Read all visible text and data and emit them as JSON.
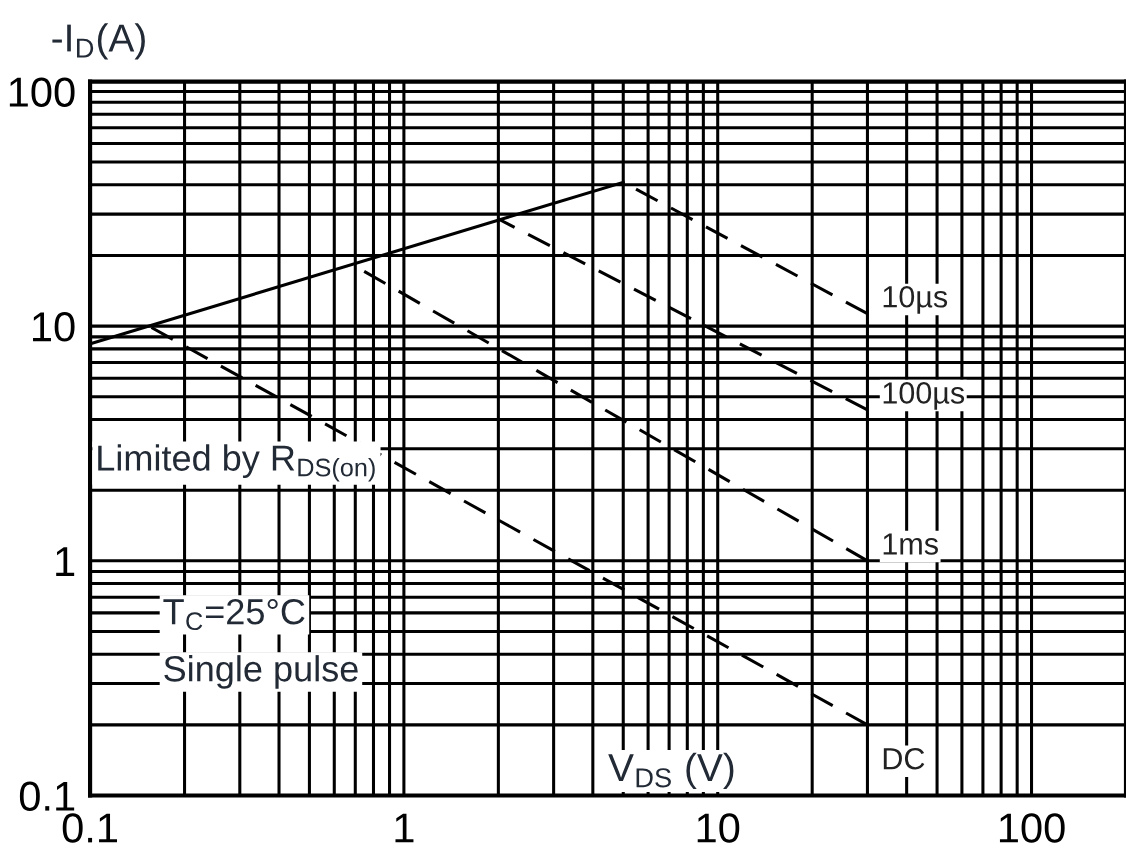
{
  "chart_data": {
    "type": "line",
    "xlabel": "V$_{DS}$ (V)",
    "ylabel": "-I$_{D}$(A)",
    "log": "xy",
    "grid": true,
    "legend": false,
    "xlim": [
      0.1,
      200
    ],
    "ylim": [
      0.1,
      110
    ],
    "xticks": [
      0.1,
      1,
      10,
      100
    ],
    "yticks": [
      0.1,
      1,
      10,
      100
    ],
    "series": [
      {
        "color": "#000000",
        "line_style": "solid",
        "x": [
          0.1,
          5
        ],
        "values": [
          8.4,
          41
        ]
      },
      {
        "name": "10µs",
        "color": "#000000",
        "line_style": "dashed",
        "x": [
          5,
          30
        ],
        "values": [
          41,
          11.3
        ]
      },
      {
        "name": "100µs",
        "color": "#000000",
        "line_style": "dashed",
        "x": [
          2,
          30
        ],
        "values": [
          28.6,
          4.4
        ]
      },
      {
        "name": "1ms",
        "color": "#000000",
        "line_style": "dashed",
        "x": [
          0.68,
          30
        ],
        "values": [
          18.4,
          1.0
        ]
      },
      {
        "name": "DC",
        "color": "#000000",
        "line_style": "dashed",
        "x": [
          0.154,
          30
        ],
        "values": [
          10,
          0.2
        ]
      }
    ],
    "annotations": [
      "Limited by R$_{DS(on)}$",
      "T$_{C}$=25°C",
      "Single pulse"
    ]
  }
}
